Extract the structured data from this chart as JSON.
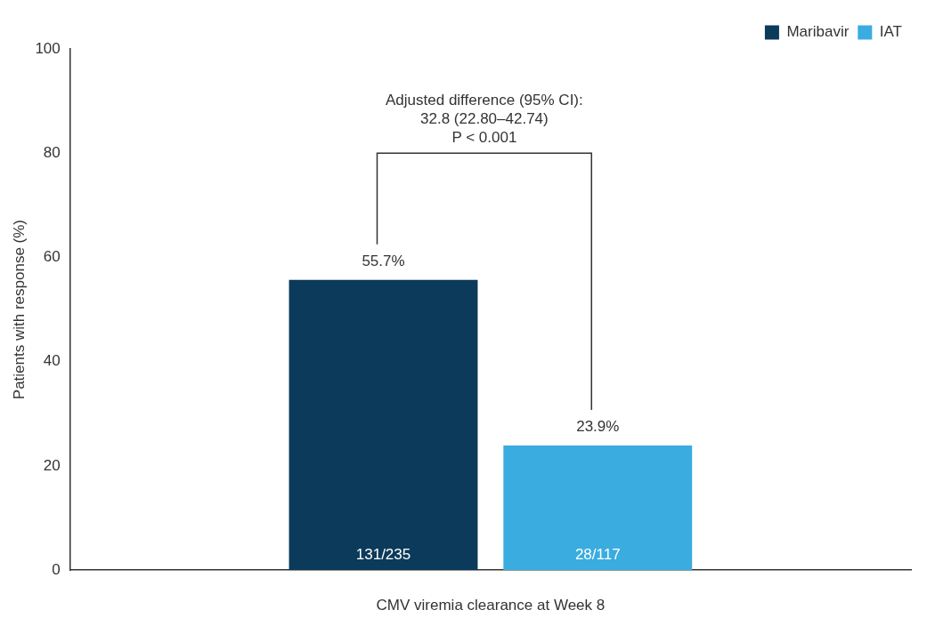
{
  "chart_data": {
    "type": "bar",
    "ylabel": "Patients with response (%)",
    "xlabel": "CMV viremia clearance at Week 8",
    "categories": [
      null
    ],
    "series": [
      {
        "name": "Maribavir",
        "color": "#0b3a5a",
        "values": [
          55.7
        ],
        "value_labels": [
          "55.7%"
        ]
      },
      {
        "name": "IAT",
        "color": "#3aace0",
        "values": [
          23.9
        ],
        "value_labels": [
          "23.9%"
        ]
      }
    ],
    "ylim": [
      0,
      100
    ],
    "yticks": [
      0,
      20,
      40,
      60,
      80,
      100
    ],
    "grid": false,
    "legend": "top right",
    "annotations": [
      "Adjusted difference (95% CI):\n32.8 (22.80–42.74)\nP < 0.001",
      "131/235",
      "28/117"
    ]
  }
}
